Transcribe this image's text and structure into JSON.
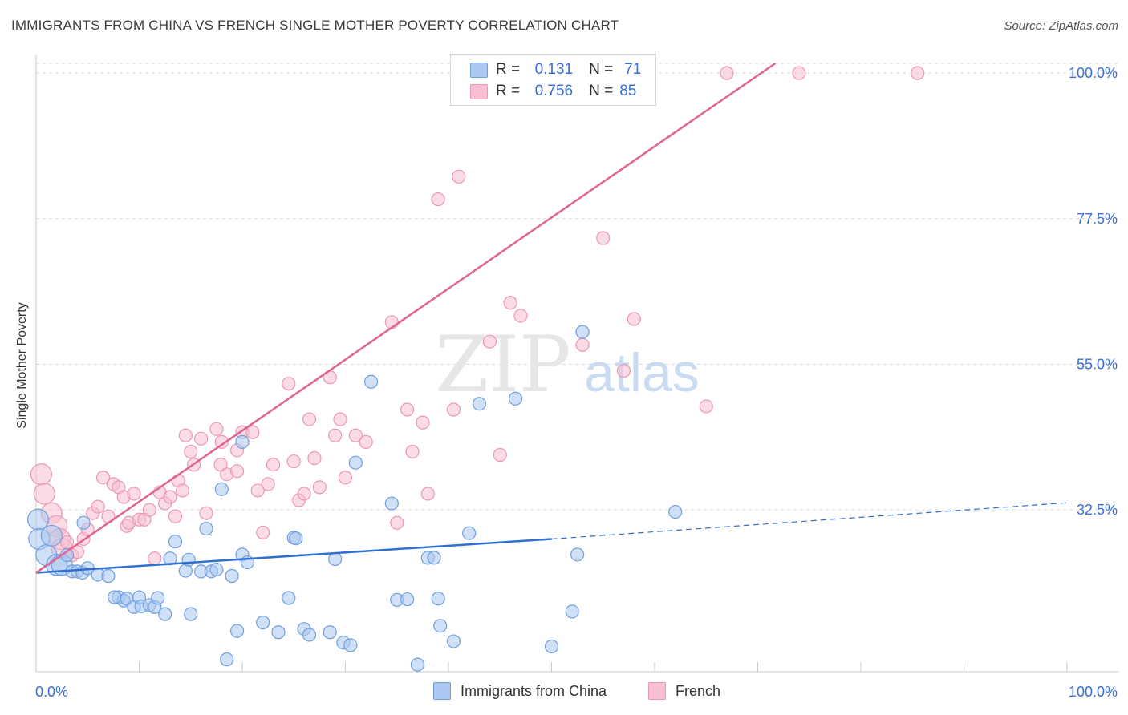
{
  "title": "IMMIGRANTS FROM CHINA VS FRENCH SINGLE MOTHER POVERTY CORRELATION CHART",
  "source": "Source: ZipAtlas.com",
  "watermark": {
    "zip": "ZIP",
    "atlas": "atlas"
  },
  "colors": {
    "china_fill": "#aac8f0",
    "china_stroke": "#6f9fe0",
    "china_line": "#2f6fd0",
    "french_fill": "#f7bfd0",
    "french_stroke": "#ec96b2",
    "french_line": "#e0648e",
    "tick_label": "#3a6fd8",
    "grid": "#dcdcdc"
  },
  "legend": {
    "r_label": "R =",
    "n_label": "N =",
    "china": {
      "r": "0.131",
      "n": "71"
    },
    "french": {
      "r": "0.756",
      "n": "85"
    }
  },
  "chart_data": {
    "type": "scatter",
    "title": "IMMIGRANTS FROM CHINA VS FRENCH SINGLE MOTHER POVERTY CORRELATION CHART",
    "xlabel": "",
    "ylabel": "Single Mother Poverty",
    "xlim": [
      0,
      100
    ],
    "ylim": [
      7.5,
      101.5
    ],
    "x_tick_labels": [
      "0.0%",
      "100.0%"
    ],
    "y_ticks": [
      32.5,
      55.0,
      77.5,
      100.0
    ],
    "y_tick_labels": [
      "32.5%",
      "55.0%",
      "77.5%",
      "100.0%"
    ],
    "grid": "horizontal dashed",
    "legend_position": "bottom",
    "series": [
      {
        "name": "Immigrants from China",
        "trend": {
          "x0": 0,
          "y0": 22.8,
          "x1": 50,
          "y1": 28.0,
          "dashed_to_x": 100,
          "dashed_to_y": 33.6
        },
        "points": [
          [
            0.2,
            31.0
          ],
          [
            0.3,
            28.0
          ],
          [
            1.0,
            25.5
          ],
          [
            1.5,
            28.5
          ],
          [
            2.0,
            24.0
          ],
          [
            2.5,
            24.0
          ],
          [
            3.0,
            25.5
          ],
          [
            3.5,
            23.0
          ],
          [
            4.0,
            23.0
          ],
          [
            4.5,
            22.8
          ],
          [
            5.0,
            23.5
          ],
          [
            4.6,
            30.5
          ],
          [
            6.0,
            22.5
          ],
          [
            7.0,
            22.3
          ],
          [
            8.0,
            19.0
          ],
          [
            8.5,
            18.5
          ],
          [
            8.8,
            18.8
          ],
          [
            7.6,
            19.0
          ],
          [
            9.5,
            17.5
          ],
          [
            10.0,
            19.0
          ],
          [
            10.2,
            17.6
          ],
          [
            11.0,
            17.8
          ],
          [
            11.5,
            17.5
          ],
          [
            11.8,
            18.9
          ],
          [
            12.5,
            16.4
          ],
          [
            13.0,
            25.0
          ],
          [
            13.5,
            27.6
          ],
          [
            14.5,
            23.1
          ],
          [
            14.8,
            24.8
          ],
          [
            15.0,
            16.4
          ],
          [
            16.0,
            23.0
          ],
          [
            16.5,
            29.6
          ],
          [
            17.0,
            23.0
          ],
          [
            17.5,
            23.3
          ],
          [
            18.0,
            35.7
          ],
          [
            19.0,
            22.3
          ],
          [
            18.5,
            9.4
          ],
          [
            19.5,
            13.8
          ],
          [
            20.0,
            25.6
          ],
          [
            20.5,
            24.4
          ],
          [
            22.0,
            15.1
          ],
          [
            23.5,
            13.6
          ],
          [
            24.5,
            18.9
          ],
          [
            25.0,
            28.2
          ],
          [
            25.2,
            28.1
          ],
          [
            26.0,
            14.1
          ],
          [
            26.5,
            13.2
          ],
          [
            28.5,
            13.6
          ],
          [
            29.0,
            24.9
          ],
          [
            29.8,
            12.0
          ],
          [
            30.5,
            11.6
          ],
          [
            31.0,
            39.8
          ],
          [
            32.5,
            52.3
          ],
          [
            34.5,
            33.5
          ],
          [
            35.0,
            18.6
          ],
          [
            36.0,
            18.7
          ],
          [
            37.0,
            8.6
          ],
          [
            38.0,
            25.1
          ],
          [
            38.6,
            25.1
          ],
          [
            39.0,
            18.8
          ],
          [
            39.2,
            14.6
          ],
          [
            40.5,
            12.2
          ],
          [
            42.0,
            28.9
          ],
          [
            43.0,
            48.9
          ],
          [
            46.5,
            49.7
          ],
          [
            50.0,
            11.4
          ],
          [
            52.0,
            16.8
          ],
          [
            52.5,
            25.6
          ],
          [
            62.0,
            32.2
          ],
          [
            53.0,
            60.0
          ],
          [
            20.0,
            43.0
          ]
        ]
      },
      {
        "name": "French",
        "trend": {
          "x0": 0,
          "y0": 22.8,
          "x1": 71.7,
          "y1": 101.5
        },
        "points": [
          [
            0.5,
            38.0
          ],
          [
            0.8,
            35.0
          ],
          [
            1.5,
            32.0
          ],
          [
            2.0,
            30.0
          ],
          [
            2.3,
            28.0
          ],
          [
            2.5,
            26.5
          ],
          [
            3.0,
            27.5
          ],
          [
            3.5,
            25.5
          ],
          [
            4.0,
            26.0
          ],
          [
            4.6,
            28.0
          ],
          [
            5.0,
            29.5
          ],
          [
            5.5,
            32.0
          ],
          [
            6.0,
            33.0
          ],
          [
            6.5,
            37.5
          ],
          [
            7.0,
            31.5
          ],
          [
            7.5,
            36.5
          ],
          [
            8.0,
            36.0
          ],
          [
            8.5,
            34.5
          ],
          [
            8.8,
            30.0
          ],
          [
            9.0,
            30.5
          ],
          [
            9.5,
            35.0
          ],
          [
            10.0,
            31.0
          ],
          [
            10.5,
            31.0
          ],
          [
            11.0,
            32.5
          ],
          [
            11.5,
            25.0
          ],
          [
            12.0,
            35.2
          ],
          [
            12.5,
            33.5
          ],
          [
            13.0,
            34.5
          ],
          [
            13.5,
            31.5
          ],
          [
            13.8,
            37.0
          ],
          [
            14.2,
            35.5
          ],
          [
            14.5,
            44.0
          ],
          [
            15.0,
            41.5
          ],
          [
            15.3,
            39.5
          ],
          [
            16.0,
            43.5
          ],
          [
            16.5,
            32.0
          ],
          [
            17.5,
            45.0
          ],
          [
            17.9,
            39.5
          ],
          [
            18.0,
            43.0
          ],
          [
            18.5,
            38.0
          ],
          [
            19.5,
            38.5
          ],
          [
            19.5,
            41.7
          ],
          [
            20.0,
            44.5
          ],
          [
            21.0,
            44.5
          ],
          [
            21.5,
            35.5
          ],
          [
            22.0,
            29.0
          ],
          [
            22.5,
            36.5
          ],
          [
            23.0,
            39.5
          ],
          [
            24.5,
            52.0
          ],
          [
            25.0,
            40.0
          ],
          [
            25.5,
            34.0
          ],
          [
            26.0,
            35.0
          ],
          [
            26.5,
            46.5
          ],
          [
            27.0,
            40.5
          ],
          [
            27.5,
            36.0
          ],
          [
            28.5,
            53.0
          ],
          [
            29.0,
            44.0
          ],
          [
            29.5,
            46.5
          ],
          [
            30.0,
            37.5
          ],
          [
            31.0,
            44.0
          ],
          [
            32.0,
            43.0
          ],
          [
            34.5,
            61.5
          ],
          [
            35.0,
            30.5
          ],
          [
            36.0,
            48.0
          ],
          [
            36.5,
            41.5
          ],
          [
            37.5,
            46.0
          ],
          [
            38.0,
            35.0
          ],
          [
            39.0,
            80.5
          ],
          [
            40.5,
            48.0
          ],
          [
            41.0,
            84.0
          ],
          [
            42.0,
            100.0
          ],
          [
            44.0,
            58.5
          ],
          [
            45.0,
            41.0
          ],
          [
            46.0,
            64.5
          ],
          [
            47.0,
            62.5
          ],
          [
            48.0,
            97.5
          ],
          [
            50.0,
            100.0
          ],
          [
            53.0,
            58.0
          ],
          [
            55.0,
            74.5
          ],
          [
            57.0,
            54.0
          ],
          [
            58.0,
            62.0
          ],
          [
            65.0,
            48.5
          ],
          [
            67.0,
            100.0
          ],
          [
            74.0,
            100.0
          ],
          [
            85.5,
            100.0
          ]
        ]
      }
    ]
  },
  "legend_bottom": {
    "china_label": "Immigrants from China",
    "french_label": "French"
  }
}
